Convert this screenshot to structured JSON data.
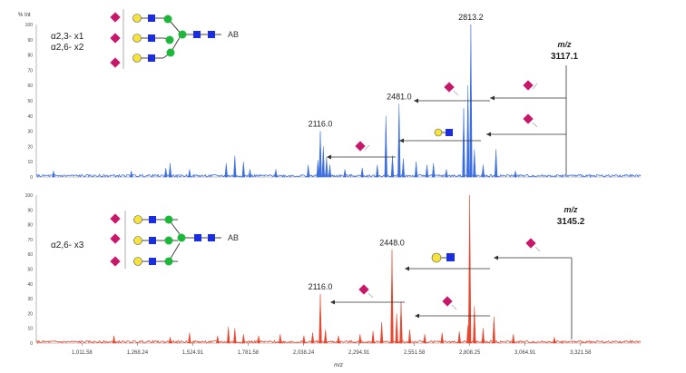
{
  "chart_data": [
    {
      "type": "line",
      "ylabel": "% Int",
      "y_ticks": [
        "100",
        "90",
        "80",
        "70",
        "60",
        "50",
        "40",
        "30",
        "20",
        "10",
        "0"
      ],
      "ylim": [
        0,
        100
      ],
      "xlim": [
        800,
        3600
      ],
      "color": "#3d6fe0",
      "annotation_lines": [
        "α2,3- x1",
        "α2,6- x2"
      ],
      "glycan_tail_label": "AB",
      "mz_heading": "m/z",
      "parent_mz": "3117.1",
      "peak_labels": [
        {
          "x": 2813.2,
          "text": "2813.2"
        },
        {
          "x": 2481.0,
          "text": "2481.0"
        },
        {
          "x": 2116.0,
          "text": "2116.0"
        }
      ],
      "peaks": [
        [
          880,
          4
        ],
        [
          1240,
          4
        ],
        [
          1400,
          6
        ],
        [
          1420,
          9
        ],
        [
          1510,
          5
        ],
        [
          1680,
          9
        ],
        [
          1720,
          14
        ],
        [
          1760,
          10
        ],
        [
          1790,
          5
        ],
        [
          1910,
          5
        ],
        [
          2060,
          8
        ],
        [
          2105,
          11
        ],
        [
          2116,
          30
        ],
        [
          2130,
          20
        ],
        [
          2145,
          13
        ],
        [
          2160,
          8
        ],
        [
          2230,
          5
        ],
        [
          2310,
          6
        ],
        [
          2380,
          8
        ],
        [
          2420,
          40
        ],
        [
          2450,
          14
        ],
        [
          2481,
          48
        ],
        [
          2500,
          12
        ],
        [
          2560,
          10
        ],
        [
          2610,
          8
        ],
        [
          2640,
          9
        ],
        [
          2700,
          5
        ],
        [
          2780,
          45
        ],
        [
          2800,
          60
        ],
        [
          2813.2,
          100
        ],
        [
          2830,
          18
        ],
        [
          2870,
          8
        ],
        [
          2930,
          18
        ],
        [
          3020,
          4
        ]
      ]
    },
    {
      "type": "line",
      "ylabel": "",
      "y_ticks": [
        "100",
        "90",
        "80",
        "70",
        "60",
        "50",
        "40",
        "30",
        "20",
        "10",
        "0"
      ],
      "ylim": [
        0,
        100
      ],
      "xlim": [
        800,
        3600
      ],
      "color": "#e8462e",
      "x_ticks": [
        1011.58,
        1268.24,
        1524.91,
        1781.58,
        2038.24,
        2294.91,
        2551.58,
        2808.25,
        3064.91,
        3321.58
      ],
      "x_tick_labels": [
        "1,011.58",
        "1,268.24",
        "1,524.91",
        "1,781.58",
        "2,038.24",
        "2,294.91",
        "2,551.58",
        "2,808.25",
        "3,064.91",
        "3,321.58"
      ],
      "xlabel": "m/z",
      "annotation_lines": [
        "α2,6- x3"
      ],
      "glycan_tail_label": "AB",
      "mz_heading": "m/z",
      "parent_mz": "3145.2",
      "peak_labels": [
        {
          "x": 2448.0,
          "text": "2448.0"
        },
        {
          "x": 2116.0,
          "text": "2116.0"
        }
      ],
      "peaks": [
        [
          1160,
          5
        ],
        [
          1420,
          4
        ],
        [
          1510,
          7
        ],
        [
          1640,
          5
        ],
        [
          1690,
          11
        ],
        [
          1720,
          10
        ],
        [
          1760,
          6
        ],
        [
          1830,
          5
        ],
        [
          1930,
          6
        ],
        [
          2040,
          5
        ],
        [
          2080,
          7
        ],
        [
          2116,
          33
        ],
        [
          2140,
          9
        ],
        [
          2200,
          5
        ],
        [
          2300,
          6
        ],
        [
          2360,
          8
        ],
        [
          2400,
          14
        ],
        [
          2448,
          63
        ],
        [
          2470,
          20
        ],
        [
          2490,
          28
        ],
        [
          2530,
          9
        ],
        [
          2600,
          6
        ],
        [
          2680,
          7
        ],
        [
          2760,
          8
        ],
        [
          2800,
          12
        ],
        [
          2808,
          100
        ],
        [
          2830,
          25
        ],
        [
          2870,
          10
        ],
        [
          2920,
          18
        ],
        [
          3010,
          6
        ],
        [
          3200,
          4
        ]
      ]
    }
  ]
}
